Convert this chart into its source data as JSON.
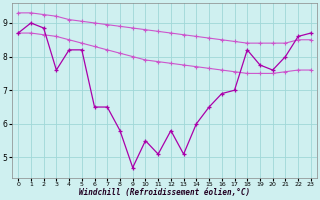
{
  "x": [
    0,
    1,
    2,
    3,
    4,
    5,
    6,
    7,
    8,
    9,
    10,
    11,
    12,
    13,
    14,
    15,
    16,
    17,
    18,
    19,
    20,
    21,
    22,
    23
  ],
  "y_main": [
    8.7,
    9.0,
    8.85,
    7.6,
    8.2,
    8.2,
    6.5,
    6.5,
    5.8,
    4.7,
    5.5,
    5.1,
    5.8,
    5.1,
    6.0,
    6.5,
    6.9,
    7.0,
    8.2,
    7.75,
    7.6,
    8.0,
    8.6,
    8.7
  ],
  "y_high": [
    9.3,
    9.3,
    9.25,
    9.2,
    9.1,
    9.05,
    9.0,
    8.95,
    8.9,
    8.85,
    8.8,
    8.75,
    8.7,
    8.65,
    8.6,
    8.55,
    8.5,
    8.45,
    8.4,
    8.4,
    8.4,
    8.4,
    8.5,
    8.5
  ],
  "y_low": [
    8.7,
    8.7,
    8.65,
    8.6,
    8.5,
    8.4,
    8.3,
    8.2,
    8.1,
    8.0,
    7.9,
    7.85,
    7.8,
    7.75,
    7.7,
    7.65,
    7.6,
    7.55,
    7.5,
    7.5,
    7.5,
    7.55,
    7.6,
    7.6
  ],
  "color_main": "#aa00aa",
  "color_band": "#cc55cc",
  "bg_color": "#cff0f0",
  "grid_color": "#a0d8d8",
  "xlabel": "Windchill (Refroidissement éolien,°C)",
  "ylim": [
    4.4,
    9.6
  ],
  "yticks": [
    5,
    6,
    7,
    8,
    9
  ],
  "xlim": [
    -0.5,
    23.5
  ]
}
